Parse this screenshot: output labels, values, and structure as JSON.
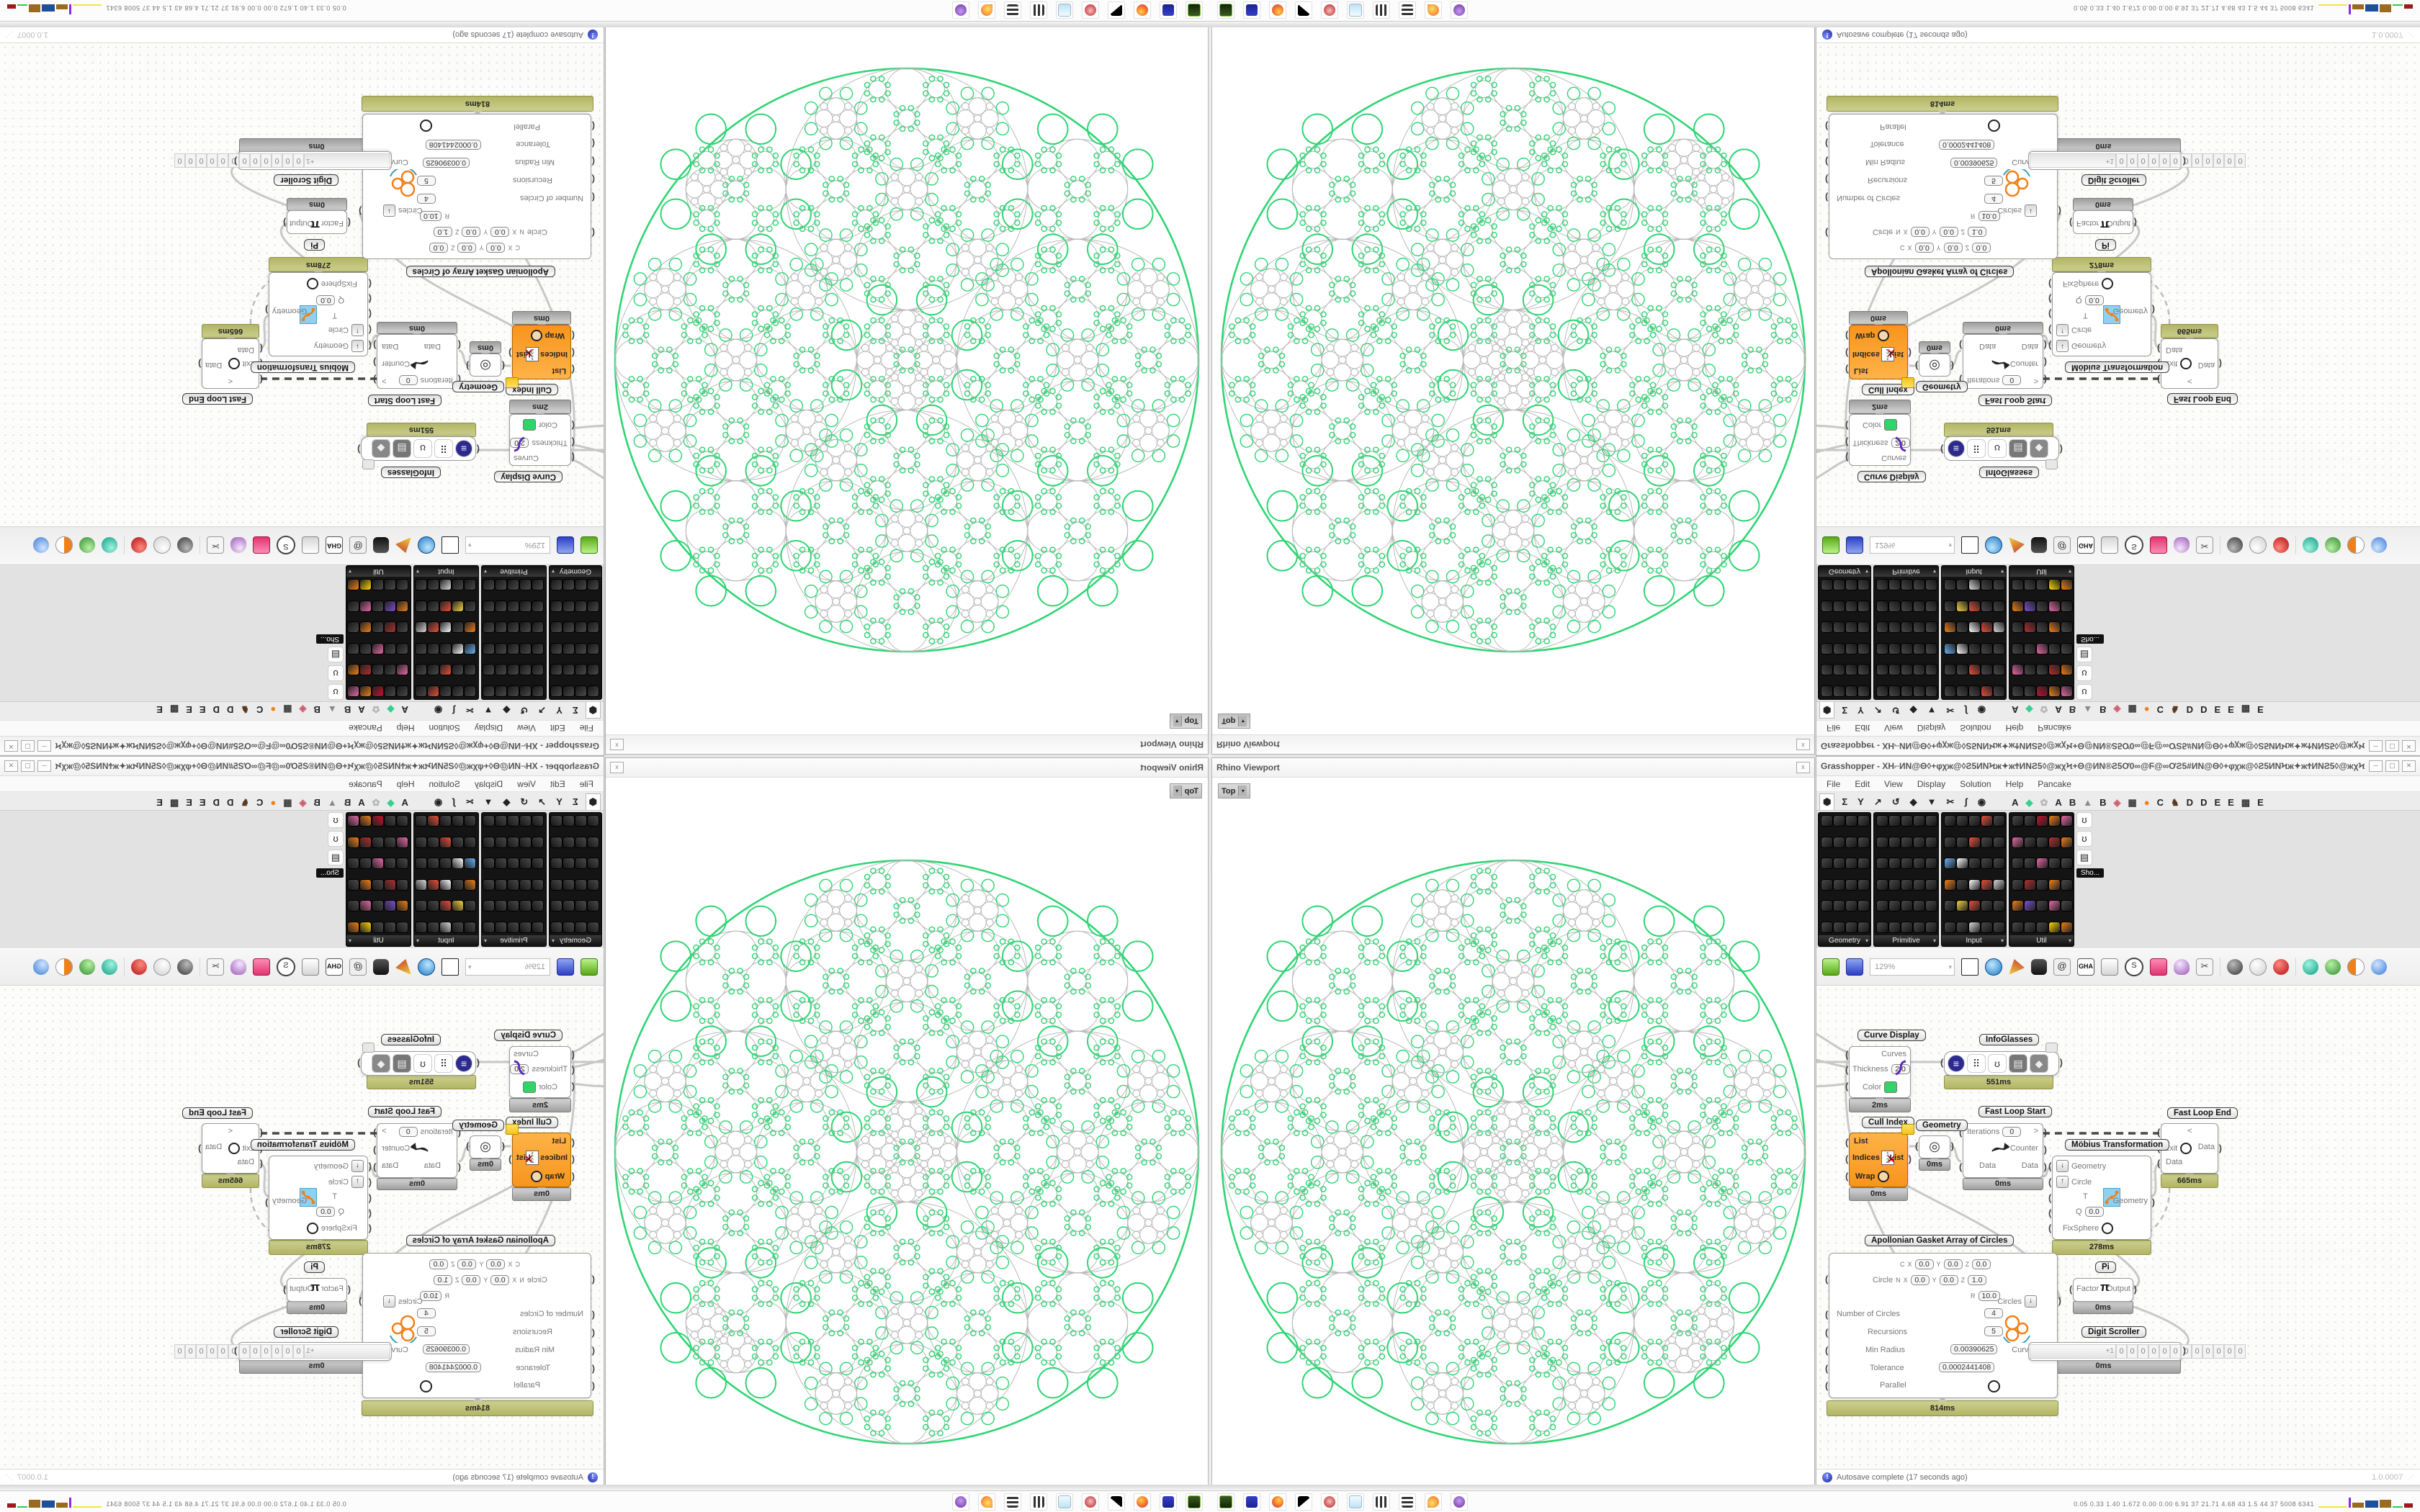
{
  "viewport": {
    "title": "Rhino Viewport",
    "close_label": "x",
    "view_tab": "Top",
    "view_tab_arrow": "▾"
  },
  "gh": {
    "title": "Grasshopper - XH⌐ИN@Θ◊+φχж@◊Ƨ5ИNϞж✦жϮИNƧ5◊@жχϞ+Θ@ИN®Ƨ5Ơ0∞@Ϝ@∞ƠƧ5#ИN@Θ◊+φχж@◊Ƨ5ИNϞж✦жϮИNƧ5◊@жχϞ+Θ@ИN*",
    "menu": [
      "File",
      "Edit",
      "View",
      "Display",
      "Solution",
      "Help",
      "Pancake"
    ],
    "tab_icons": [
      "⬢",
      "Σ",
      "Y",
      "↗",
      "↺",
      "◆",
      "▼",
      "✂",
      "ʃ",
      "◉"
    ],
    "tab_letters": [
      "A",
      "◆",
      "✿",
      "A",
      "B",
      "▲",
      "B",
      "◈",
      "▦",
      "●",
      "C",
      "♞",
      "D",
      "D",
      "E",
      "E",
      "▩",
      "E"
    ],
    "palettes": [
      {
        "name": "Geometry",
        "cols": 4
      },
      {
        "name": "Primitive",
        "cols": 5
      },
      {
        "name": "Input",
        "cols": 5
      },
      {
        "name": "Util",
        "cols": 5
      }
    ],
    "palette_more_tooltip": "Sho...",
    "toolbar": {
      "zoom_level": "129%",
      "gha_label": "GHA"
    },
    "status": {
      "autosave": "Autosave complete (17 seconds ago)",
      "version": "1.0.0007",
      "info_glyph": "!"
    }
  },
  "nodes": {
    "curve_display": {
      "label": "Curve Display",
      "in_curves": "Curves",
      "in_thickness": "Thickness",
      "thickness_value": "2.0",
      "in_color": "Color",
      "runtime": "2ms"
    },
    "infoglasses": {
      "label": "InfoGlasses",
      "runtime": "551ms",
      "icons": [
        "list-ellipse",
        "grid-dots",
        "glasses",
        "archive",
        "puzzle"
      ]
    },
    "cull_index": {
      "label": "Cull Index",
      "in_list": "List",
      "in_indices": "Indices",
      "in_wrap": "Wrap",
      "out_list": "List",
      "runtime": "0ms"
    },
    "geometry": {
      "label": "Geometry",
      "runtime": "0ms",
      "icon_glyph": "◎"
    },
    "fast_loop_start": {
      "label": "Fast Loop Start",
      "in_iterations": "Iterations",
      "iterations_value": "0",
      "in_data": "Data",
      "out_arrow": ">",
      "out_counter": "Counter",
      "out_data": "Data",
      "runtime": "0ms"
    },
    "fast_loop_end": {
      "label": "Fast Loop End",
      "in_arrow": "<",
      "in_exit": "Exit",
      "in_data": "Data",
      "out_data": "Data",
      "runtime": "665ms"
    },
    "mobius": {
      "label": "Möbius Transformation",
      "in_geometry": "Geometry",
      "in_circle": "Circle",
      "in_t": "T",
      "in_q": "Q",
      "q_value": "0.0",
      "in_fixsphere": "FixSphere",
      "out_geometry": "Geometry",
      "runtime": "278ms"
    },
    "pi": {
      "label": "Pi",
      "in_factor": "Factor",
      "symbol": "π",
      "out_output": "Output",
      "runtime": "0ms"
    },
    "digit_scroller": {
      "label": "Digit Scroller",
      "prefix": "+1",
      "digits": [
        "0",
        "0",
        "0",
        "0",
        "0",
        "0",
        "0",
        "0",
        "0",
        "0",
        "0",
        "0"
      ],
      "runtime": "0ms"
    },
    "apollonian": {
      "label": "Apollonian Gasket Array of Circles",
      "c_label": "C",
      "circle_label": "Circle",
      "n_label": "N",
      "ax": "X",
      "ay": "Y",
      "az": "Z",
      "r_label": "R",
      "c_values": [
        "0.0",
        "0.0",
        "0.0"
      ],
      "n_values": [
        "0.0",
        "0.0",
        "1.0"
      ],
      "r_value": "10.0",
      "p_number_label": "Number of Circles",
      "p_number": "4",
      "p_recursions_label": "Recursions",
      "p_recursions": "5",
      "p_minradius_label": "Min Radius",
      "p_minradius": "0.00390625",
      "p_tolerance_label": "Tolerance",
      "p_tolerance": "0.0002441408",
      "p_parallel_label": "Parallel",
      "out_circles": "Circles",
      "out_curves": "Curves",
      "runtime": "814ms"
    }
  },
  "taskbar": {
    "icons": [
      "console-green",
      "floppy-64",
      "firefox",
      "inkscape",
      "package-red",
      "notepad",
      "maze-a",
      "maze-b",
      "firefox-flame",
      "owl-purple"
    ],
    "sysmon": "0.05 0.33 1.40 1.672 0.00 0.00 6.91 37 21.71 4.68 43 1.5 44 37 5008 6341"
  },
  "colors": {
    "gasket_green": "#2ed573",
    "gasket_gray": "#b9b9b9",
    "selected_node_orange": "#f7941d",
    "slow_runtime_olive": "#b2b565",
    "display_color_swatch": "#2fd566"
  },
  "gasket_params": {
    "outer_radius": 10.0,
    "number_of_circles": 4,
    "recursions": 5
  }
}
